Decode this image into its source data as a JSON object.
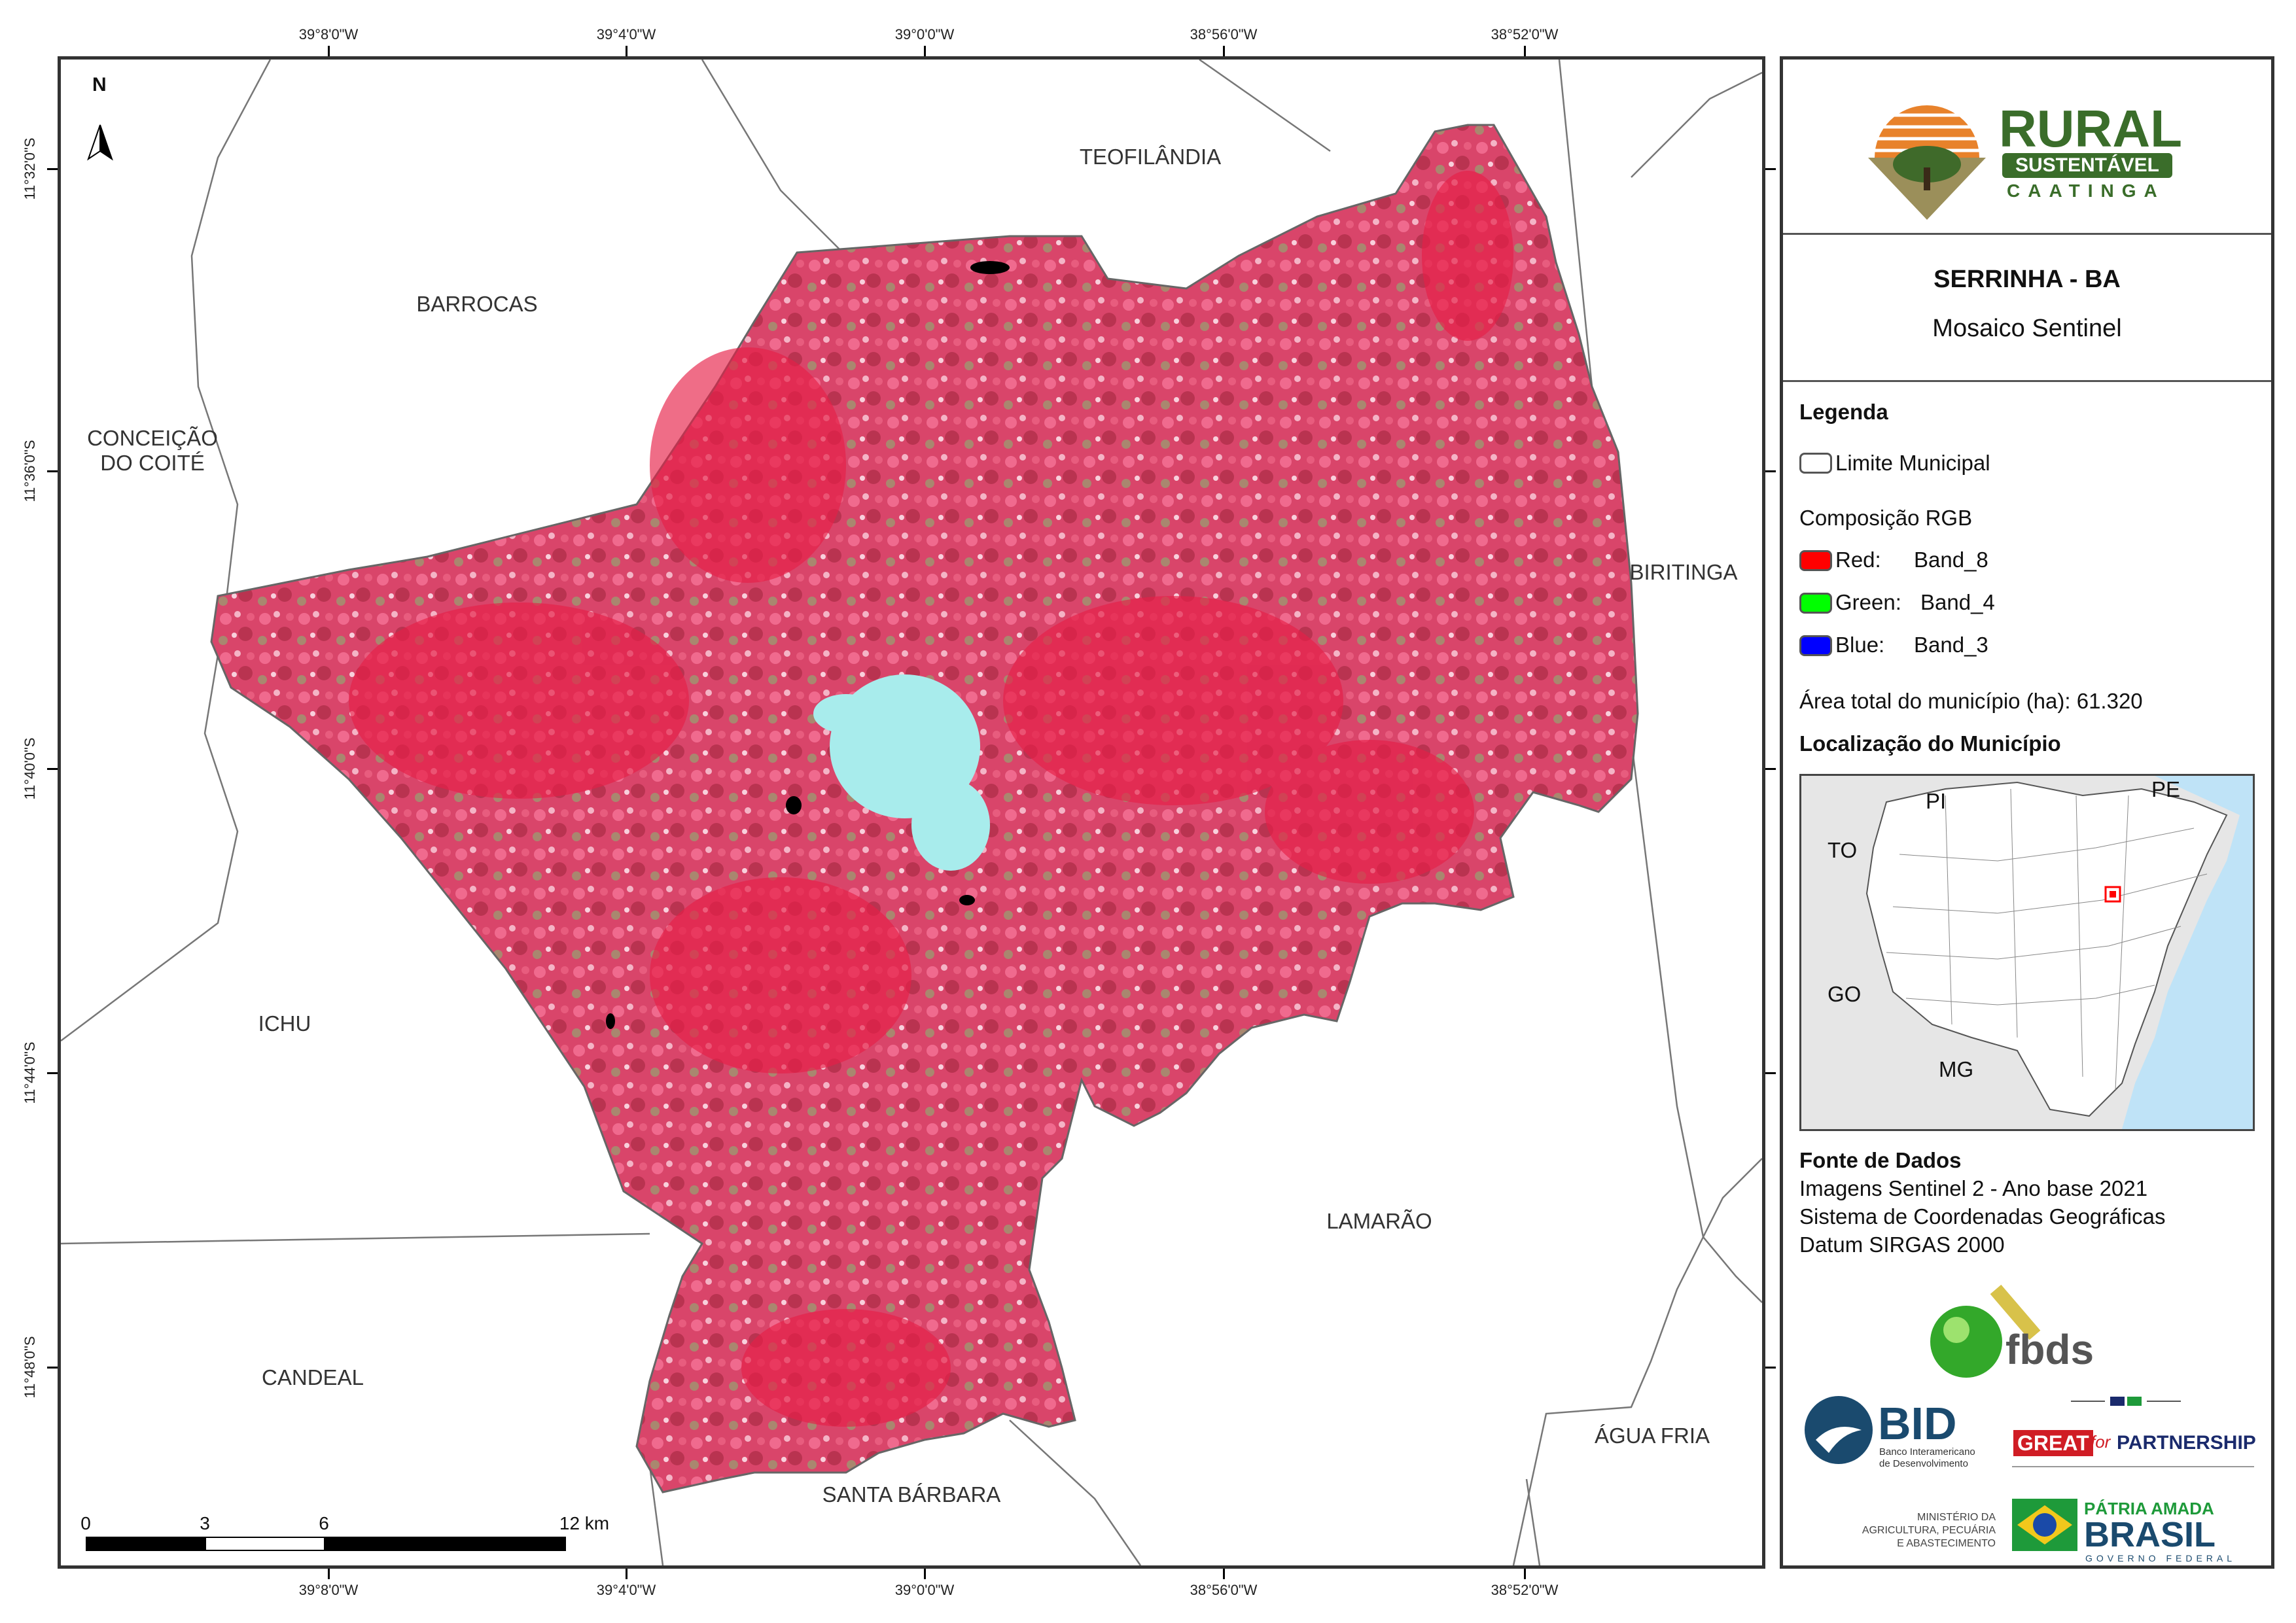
{
  "map": {
    "title": "SERRINHA - BA",
    "subtitle": "Mosaico Sentinel",
    "north_label": "N",
    "coords": {
      "lon": [
        "39°8'0\"W",
        "39°4'0\"W",
        "39°0'0\"W",
        "38°56'0\"W",
        "38°52'0\"W"
      ],
      "lat": [
        "11°32'0\"S",
        "11°36'0\"S",
        "11°40'0\"S",
        "11°44'0\"S",
        "11°48'0\"S"
      ]
    },
    "neighbors": {
      "teofilandia": "TEOFILÂNDIA",
      "barrocas": "BARROCAS",
      "conceicao": "CONCEIÇÃO\nDO COITÉ",
      "biritinga": "BIRITINGA",
      "ichu": "ICHU",
      "lamarao": "LAMARÃO",
      "candeal": "CANDEAL",
      "santa_barbara": "SANTA BÁRBARA",
      "agua_fria": "ÁGUA FRIA"
    },
    "scale": {
      "labels": [
        "0",
        "3",
        "6",
        "12 km"
      ]
    }
  },
  "legend": {
    "heading": "Legenda",
    "limite": "Limite Municipal",
    "rgb_heading": "Composição RGB",
    "red_label": "Red:",
    "red_band": "Band_8",
    "green_label": "Green:",
    "green_band": "Band_4",
    "blue_label": "Blue:",
    "blue_band": "Band_3",
    "area": "Área total do município (ha): 61.320",
    "location_heading": "Localização do Município",
    "states": {
      "pi": "PI",
      "pe": "PE",
      "to": "TO",
      "go": "GO",
      "mg": "MG"
    }
  },
  "colors": {
    "red": "#ff0000",
    "green": "#00ff00",
    "blue": "#0000ff",
    "vegetation": "#e0405e",
    "ocean": "#bfe3f7",
    "outside": "#e6e6e6"
  },
  "sources": {
    "heading": "Fonte de Dados",
    "line1": "Imagens Sentinel 2 - Ano base 2021",
    "line2": "Sistema de Coordenadas Geográficas",
    "line3": "Datum SIRGAS 2000"
  },
  "logos": {
    "rural_1": "RURAL",
    "rural_2": "SUSTENTÁVEL",
    "rural_3": "CAATINGA",
    "fbds": "fbds",
    "bid": "BID",
    "bid_sub1": "Banco Interamericano",
    "bid_sub2": "de Desenvolvimento",
    "great_1": "GREAT",
    "great_2": "for",
    "great_3": "PARTNERSHIP",
    "ministerio_1": "MINISTÉRIO DA",
    "ministerio_2": "AGRICULTURA, PECUÁRIA",
    "ministerio_3": "E ABASTECIMENTO",
    "patria_1": "PÁTRIA AMADA",
    "patria_2": "BRASIL",
    "patria_3": "GOVERNO FEDERAL"
  }
}
